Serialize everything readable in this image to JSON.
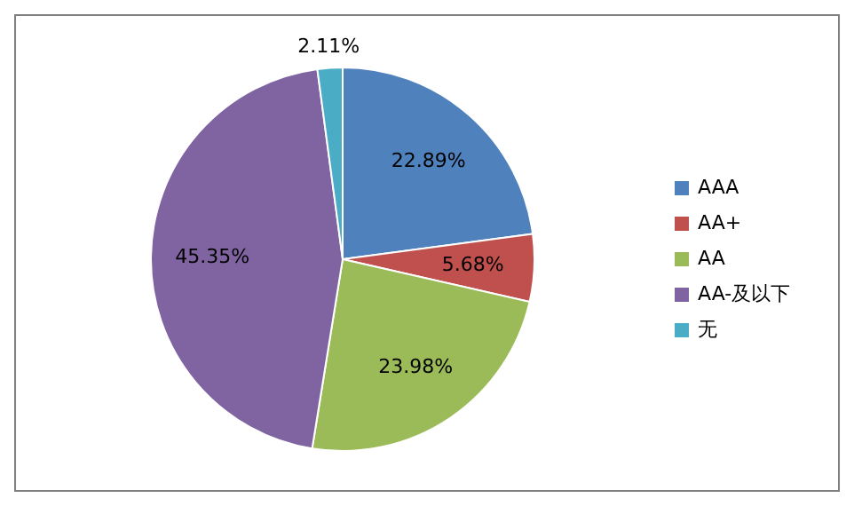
{
  "chart_data": {
    "type": "pie",
    "categories": [
      "AAA",
      "AA+",
      "AA",
      "AA-及以下",
      "无"
    ],
    "values": [
      22.89,
      5.68,
      23.98,
      45.35,
      2.11
    ],
    "colors": [
      "#4f81bd",
      "#c0504d",
      "#9bbb59",
      "#8064a2",
      "#4bacc6"
    ],
    "value_labels": [
      "22.89%",
      "5.68%",
      "23.98%",
      "45.35%",
      "2.11%"
    ],
    "legend": "right"
  }
}
